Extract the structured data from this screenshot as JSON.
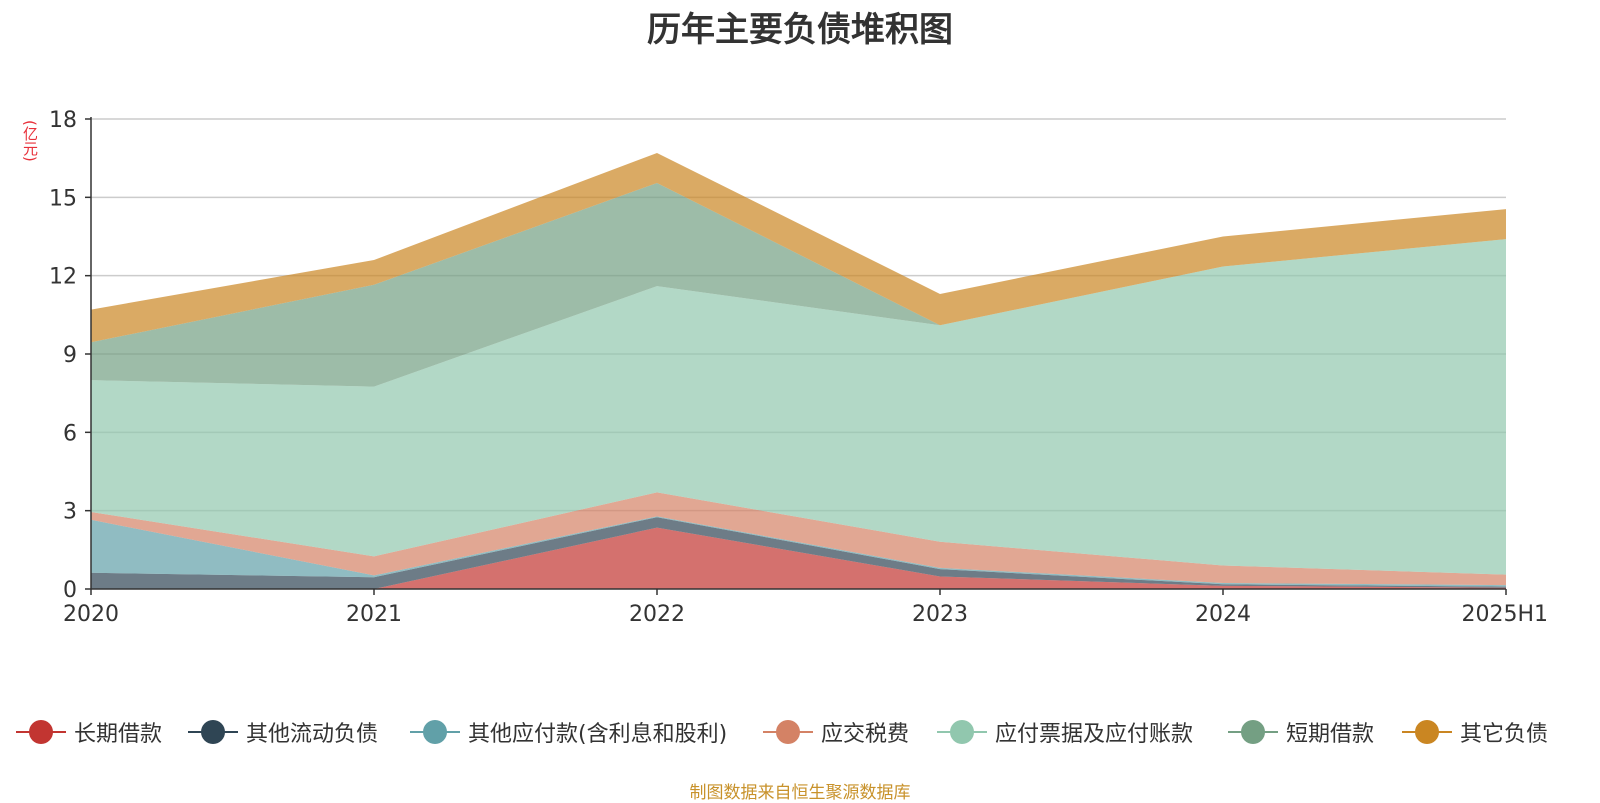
{
  "chart_data": {
    "type": "area",
    "stacked": true,
    "title": "历年主要负债堆积图",
    "ylabel": "(亿元)",
    "xlabel": "",
    "categories": [
      "2020",
      "2021",
      "2022",
      "2023",
      "2024",
      "2025H1"
    ],
    "ylim": [
      0,
      18
    ],
    "yticks": [
      0,
      3,
      6,
      9,
      12,
      15,
      18
    ],
    "grid": true,
    "legend_position": "bottom",
    "series": [
      {
        "name": "长期借款",
        "color": "#c23531",
        "values": [
          0.0,
          0.0,
          2.35,
          0.48,
          0.12,
          0.05
        ]
      },
      {
        "name": "其他流动负债",
        "color": "#2f4554",
        "values": [
          0.62,
          0.45,
          0.4,
          0.28,
          0.06,
          0.04
        ]
      },
      {
        "name": "其他应付款(含利息和股利)",
        "color": "#61a0a8",
        "values": [
          2.03,
          0.07,
          0.03,
          0.05,
          0.05,
          0.06
        ]
      },
      {
        "name": "应交税费",
        "color": "#d48265",
        "values": [
          0.3,
          0.73,
          0.92,
          1.0,
          0.67,
          0.4
        ]
      },
      {
        "name": "应付票据及应付账款",
        "color": "#91c7ae",
        "values": [
          5.05,
          6.5,
          7.9,
          8.29,
          11.45,
          12.85
        ]
      },
      {
        "name": "短期借款",
        "color": "#749f83",
        "values": [
          1.45,
          3.9,
          3.95,
          0.0,
          0.0,
          0.0
        ]
      },
      {
        "name": "其它负债",
        "color": "#ca8622",
        "values": [
          1.25,
          0.95,
          1.15,
          1.2,
          1.15,
          1.15
        ]
      }
    ]
  },
  "source_note": "制图数据来自恒生聚源数据库"
}
